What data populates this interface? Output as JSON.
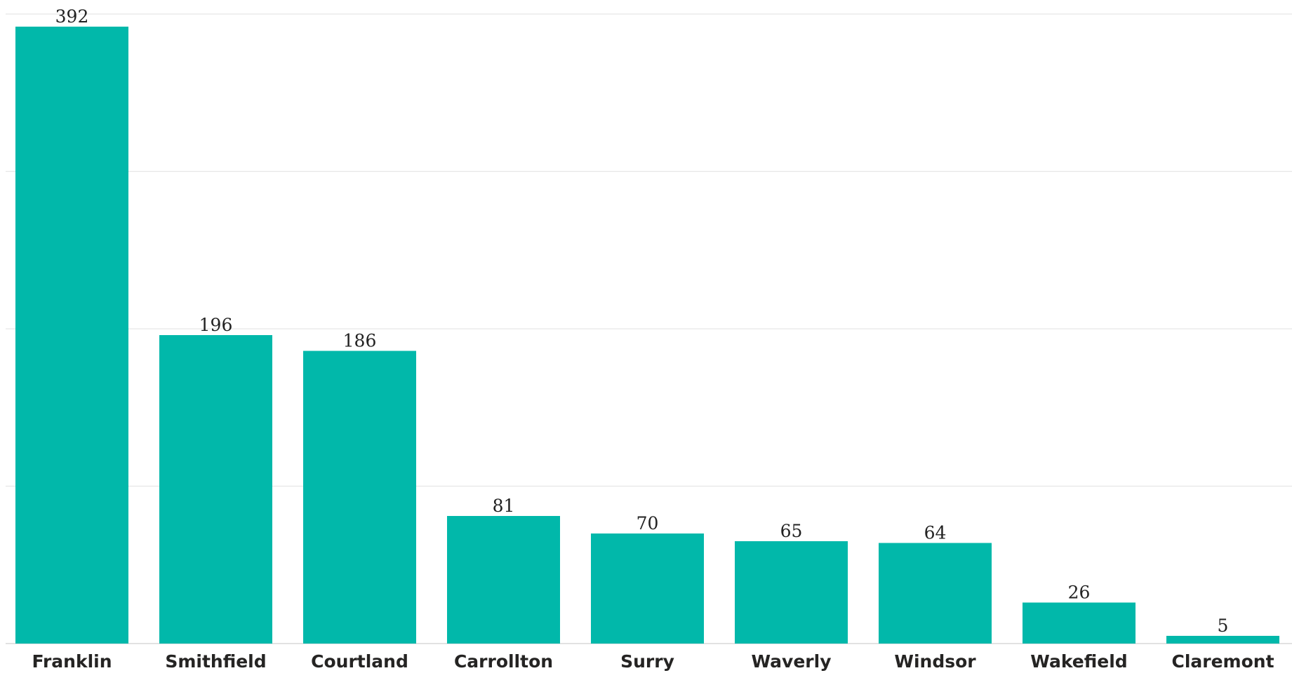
{
  "chart_data": {
    "type": "bar",
    "categories": [
      "Franklin",
      "Smithfield",
      "Courtland",
      "Carrollton",
      "Surry",
      "Waverly",
      "Windsor",
      "Wakefield",
      "Claremont"
    ],
    "values": [
      392,
      196,
      186,
      81,
      70,
      65,
      64,
      26,
      5
    ],
    "title": "",
    "xlabel": "",
    "ylabel": "",
    "ylim": [
      0,
      400
    ],
    "y_gridlines": [
      0,
      100,
      200,
      300,
      400
    ],
    "grid": true,
    "y_tick_labels_visible": false,
    "data_labels": true,
    "legend": "none",
    "colors": {
      "bar": "#01B8AA",
      "gridline": "#e6e6e6",
      "label": "#252423"
    }
  }
}
